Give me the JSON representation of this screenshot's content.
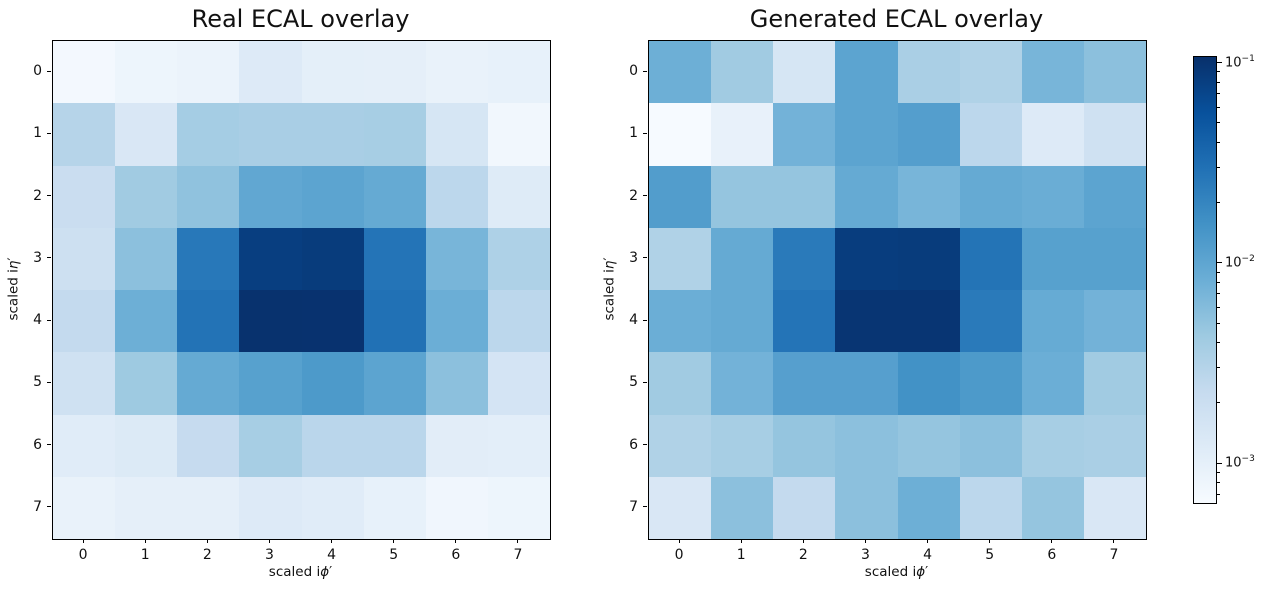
{
  "figure": {
    "background": "#ffffff",
    "text_color": "#111111"
  },
  "labels": {
    "x_prefix": "scaled i",
    "x_symbol": "ϕ",
    "x_prime": "′",
    "y_prefix": "scaled i",
    "y_symbol": "η",
    "y_prime": "′"
  },
  "colormap": {
    "name": "Blues",
    "stops": [
      "#f7fbff",
      "#deebf7",
      "#c6dbef",
      "#9ecae1",
      "#6baed6",
      "#4292c6",
      "#2171b5",
      "#08519c",
      "#08306b"
    ]
  },
  "colorbar": {
    "scale": "log",
    "vmin": 0.00064,
    "vmax": 0.108,
    "major_ticks": [
      {
        "value": 0.1,
        "base": "10",
        "exp": "−1"
      },
      {
        "value": 0.01,
        "base": "10",
        "exp": "−2"
      },
      {
        "value": 0.001,
        "base": "10",
        "exp": "−3"
      }
    ]
  },
  "chart_data": [
    {
      "type": "heatmap",
      "title": "Real ECAL overlay",
      "xlabel": "scaled iϕ′",
      "ylabel": "scaled iη′",
      "x_ticks": [
        "0",
        "1",
        "2",
        "3",
        "4",
        "5",
        "6",
        "7"
      ],
      "y_ticks": [
        "0",
        "1",
        "2",
        "3",
        "4",
        "5",
        "6",
        "7"
      ],
      "colormap": "Blues",
      "scale": "log",
      "vmin": 0.00064,
      "vmax": 0.108,
      "values": [
        [
          0.00071,
          0.00083,
          0.00087,
          0.00125,
          0.00104,
          0.00102,
          0.00092,
          0.00096
        ],
        [
          0.003,
          0.0014,
          0.0039,
          0.0037,
          0.0037,
          0.0038,
          0.0015,
          0.00075
        ],
        [
          0.0021,
          0.0042,
          0.0052,
          0.0097,
          0.0105,
          0.0092,
          0.0027,
          0.0012
        ],
        [
          0.0019,
          0.0055,
          0.026,
          0.082,
          0.086,
          0.028,
          0.0071,
          0.0034
        ],
        [
          0.0024,
          0.0081,
          0.029,
          0.104,
          0.103,
          0.03,
          0.0083,
          0.0027
        ],
        [
          0.0018,
          0.0044,
          0.0092,
          0.0113,
          0.0132,
          0.0105,
          0.0055,
          0.0016
        ],
        [
          0.00115,
          0.00128,
          0.0023,
          0.0038,
          0.0028,
          0.0028,
          0.0011,
          0.00107
        ],
        [
          0.00092,
          0.00102,
          0.00102,
          0.00125,
          0.00115,
          0.00096,
          0.00077,
          0.00083
        ]
      ]
    },
    {
      "type": "heatmap",
      "title": "Generated ECAL overlay",
      "xlabel": "scaled iϕ′",
      "ylabel": "scaled iη′",
      "x_ticks": [
        "0",
        "1",
        "2",
        "3",
        "4",
        "5",
        "6",
        "7"
      ],
      "y_ticks": [
        "0",
        "1",
        "2",
        "3",
        "4",
        "5",
        "6",
        "7"
      ],
      "colormap": "Blues",
      "scale": "log",
      "vmin": 0.00064,
      "vmax": 0.108,
      "values": [
        [
          0.0081,
          0.0042,
          0.0015,
          0.0105,
          0.0036,
          0.0033,
          0.0071,
          0.0055
        ],
        [
          0.00066,
          0.00094,
          0.0075,
          0.0105,
          0.0119,
          0.0027,
          0.00125,
          0.0018
        ],
        [
          0.0122,
          0.0049,
          0.0049,
          0.0092,
          0.0071,
          0.0092,
          0.0085,
          0.0105
        ],
        [
          0.0033,
          0.0092,
          0.025,
          0.084,
          0.086,
          0.0285,
          0.0113,
          0.0113
        ],
        [
          0.0083,
          0.0092,
          0.028,
          0.0975,
          0.0975,
          0.025,
          0.009,
          0.0075
        ],
        [
          0.0042,
          0.0075,
          0.0116,
          0.0116,
          0.0158,
          0.0132,
          0.0083,
          0.0042
        ],
        [
          0.0033,
          0.0038,
          0.0049,
          0.0055,
          0.0049,
          0.0055,
          0.0038,
          0.0036
        ],
        [
          0.0014,
          0.0055,
          0.0024,
          0.0055,
          0.0081,
          0.0027,
          0.0049,
          0.0014
        ]
      ]
    }
  ]
}
